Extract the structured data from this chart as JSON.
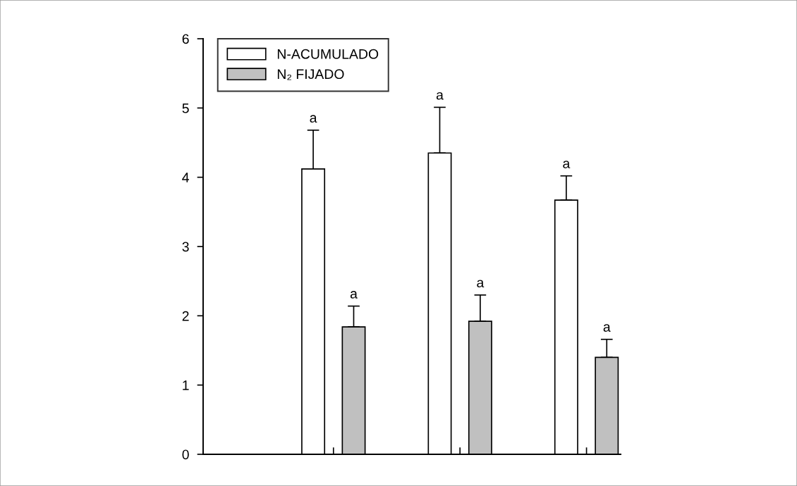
{
  "chart_data": {
    "type": "bar",
    "categories": [
      null,
      null,
      null
    ],
    "series": [
      {
        "name": "N-ACUMULADO",
        "color": "#ffffff",
        "values": [
          4.12,
          4.35,
          3.67
        ],
        "errors": [
          [
            4.12,
            4.68
          ],
          [
            4.35,
            5.01
          ],
          [
            3.67,
            4.02
          ]
        ]
      },
      {
        "name": "N₂ FIJADO",
        "color": "#c0c0c0",
        "values": [
          1.84,
          1.92,
          1.4
        ],
        "errors": [
          [
            1.84,
            2.14
          ],
          [
            1.92,
            2.3
          ],
          [
            1.4,
            1.66
          ]
        ]
      }
    ],
    "ylim": [
      0,
      6
    ],
    "yticks": [
      0,
      1,
      2,
      3,
      4,
      5,
      6
    ],
    "grid": false,
    "legend": "top left",
    "annotations": [
      "a",
      "a",
      "a",
      "a",
      "a",
      "a"
    ]
  }
}
